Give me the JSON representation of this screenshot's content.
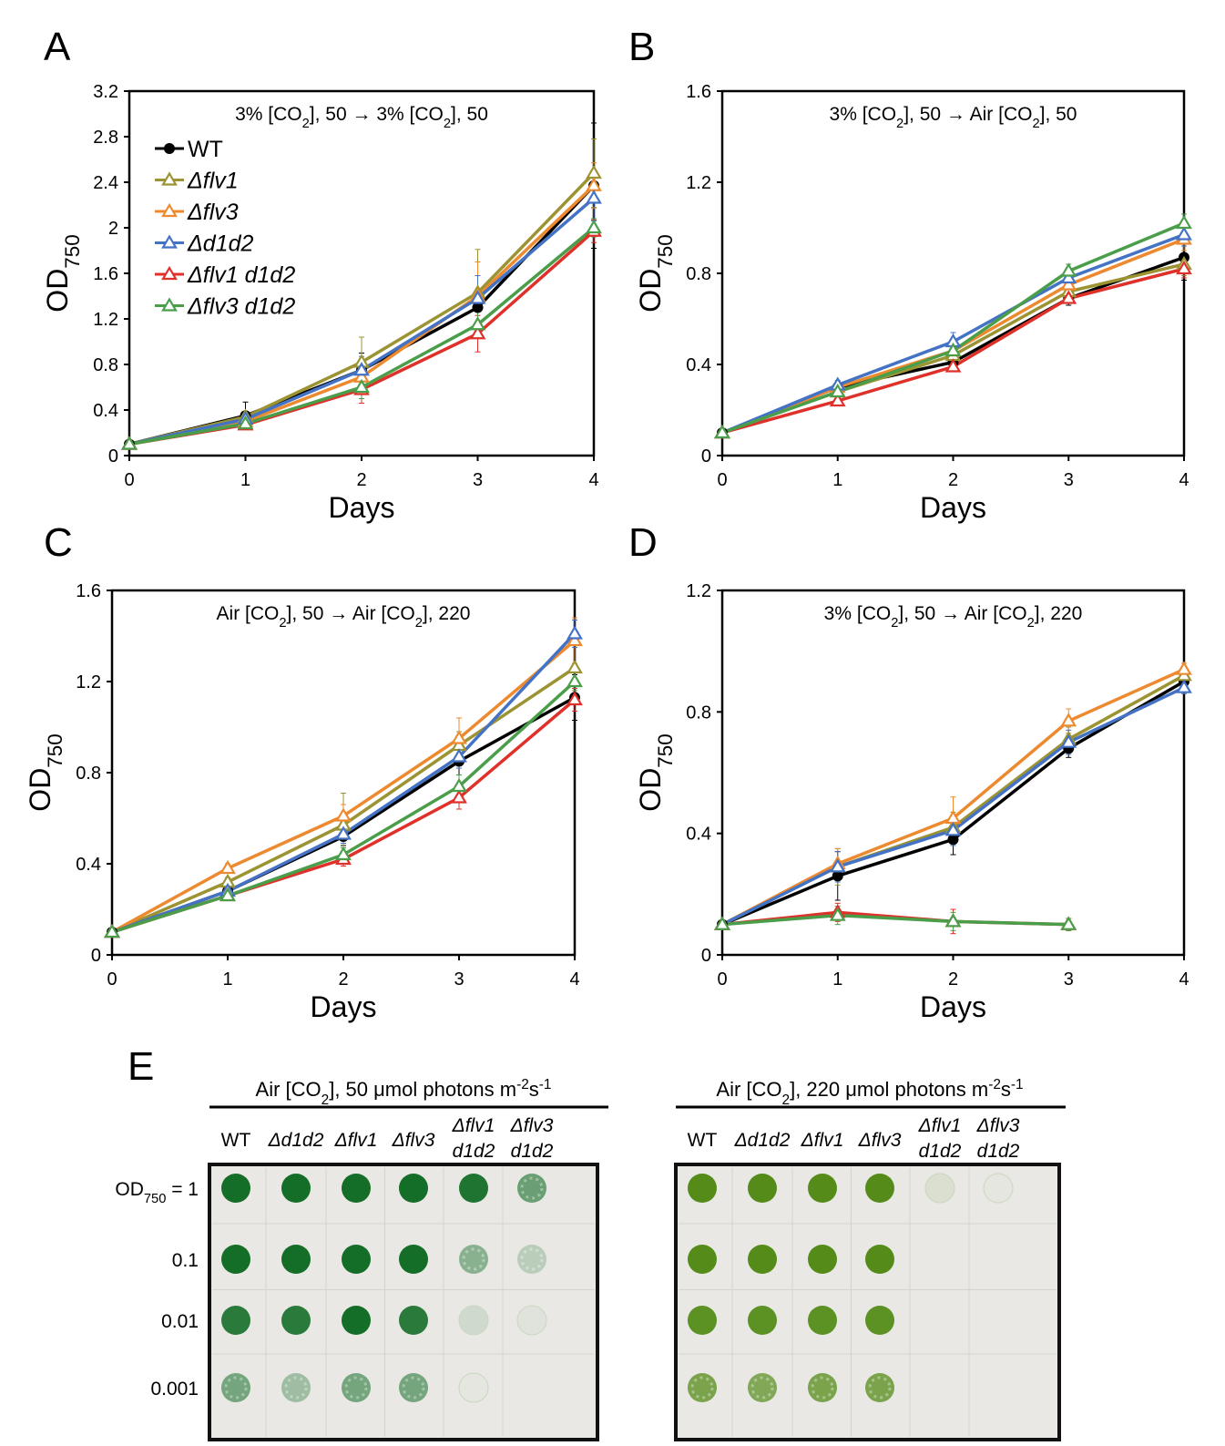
{
  "strains": [
    {
      "name": "WT",
      "color": "#000000",
      "marker": "filled-circle"
    },
    {
      "name": "Δflv1",
      "color": "#9C9333",
      "marker": "open-triangle"
    },
    {
      "name": "Δflv3",
      "color": "#ED8A2F",
      "marker": "open-triangle"
    },
    {
      "name": "Δd1d2",
      "color": "#4472C4",
      "marker": "open-triangle"
    },
    {
      "name": "Δflv1 d1d2",
      "color": "#E0302A",
      "marker": "open-triangle"
    },
    {
      "name": "Δflv3 d1d2",
      "color": "#4A9E4A",
      "marker": "open-triangle"
    }
  ],
  "chart_data": [
    {
      "panel": "A",
      "type": "line",
      "title": "3% [CO2], 50 → 3% [CO2], 50",
      "xlabel": "Days",
      "ylabel": "OD750",
      "xlim": [
        0,
        4
      ],
      "ylim": [
        0,
        3.2
      ],
      "xticks": [
        "0",
        "1",
        "2",
        "3",
        "4"
      ],
      "yticks": [
        "0",
        "0.4",
        "0.8",
        "1.2",
        "1.6",
        "2",
        "2.4",
        "2.8",
        "3.2"
      ],
      "legend": "top-left",
      "series": [
        {
          "name": "WT",
          "x": [
            0,
            1,
            2,
            3,
            4
          ],
          "y": [
            0.1,
            0.35,
            0.75,
            1.3,
            2.37
          ],
          "err": [
            0.02,
            0.12,
            0.15,
            0.15,
            0.55
          ]
        },
        {
          "name": "Δflv1",
          "x": [
            0,
            1,
            2,
            3,
            4
          ],
          "y": [
            0.1,
            0.34,
            0.82,
            1.43,
            2.48
          ],
          "err": [
            0.02,
            0.04,
            0.22,
            0.38,
            0.3
          ]
        },
        {
          "name": "Δflv3",
          "x": [
            0,
            1,
            2,
            3,
            4
          ],
          "y": [
            0.1,
            0.3,
            0.69,
            1.4,
            2.37
          ],
          "err": [
            0.02,
            0.04,
            0.15,
            0.3,
            0.2
          ]
        },
        {
          "name": "Δd1d2",
          "x": [
            0,
            1,
            2,
            3,
            4
          ],
          "y": [
            0.1,
            0.32,
            0.75,
            1.38,
            2.26
          ],
          "err": [
            0.02,
            0.04,
            0.12,
            0.2,
            0.2
          ]
        },
        {
          "name": "Δflv1 d1d2",
          "x": [
            0,
            1,
            2,
            3,
            4
          ],
          "y": [
            0.1,
            0.27,
            0.58,
            1.07,
            1.97
          ],
          "err": [
            0.02,
            0.03,
            0.12,
            0.16,
            0.1
          ]
        },
        {
          "name": "Δflv3 d1d2",
          "x": [
            0,
            1,
            2,
            3,
            4
          ],
          "y": [
            0.1,
            0.28,
            0.6,
            1.15,
            2.0
          ],
          "err": [
            0.02,
            0.03,
            0.1,
            0.12,
            0.08
          ]
        }
      ]
    },
    {
      "panel": "B",
      "type": "line",
      "title": "3% [CO2], 50 → Air [CO2], 50",
      "xlabel": "Days",
      "ylabel": "OD750",
      "xlim": [
        0,
        4
      ],
      "ylim": [
        0,
        1.6
      ],
      "xticks": [
        "0",
        "1",
        "2",
        "3",
        "4"
      ],
      "yticks": [
        "0",
        "0.4",
        "0.8",
        "1.2",
        "1.6"
      ],
      "series": [
        {
          "name": "WT",
          "x": [
            0,
            1,
            2,
            3,
            4
          ],
          "y": [
            0.1,
            0.3,
            0.41,
            0.69,
            0.87
          ],
          "err": [
            0.01,
            0.02,
            0.03,
            0.03,
            0.1
          ]
        },
        {
          "name": "Δflv1",
          "x": [
            0,
            1,
            2,
            3,
            4
          ],
          "y": [
            0.1,
            0.28,
            0.44,
            0.72,
            0.84
          ],
          "err": [
            0.01,
            0.02,
            0.03,
            0.03,
            0.05
          ]
        },
        {
          "name": "Δflv3",
          "x": [
            0,
            1,
            2,
            3,
            4
          ],
          "y": [
            0.1,
            0.3,
            0.46,
            0.75,
            0.95
          ],
          "err": [
            0.01,
            0.02,
            0.03,
            0.03,
            0.05
          ]
        },
        {
          "name": "Δd1d2",
          "x": [
            0,
            1,
            2,
            3,
            4
          ],
          "y": [
            0.1,
            0.31,
            0.5,
            0.78,
            0.97
          ],
          "err": [
            0.01,
            0.02,
            0.04,
            0.03,
            0.05
          ]
        },
        {
          "name": "Δflv1 d1d2",
          "x": [
            0,
            1,
            2,
            3,
            4
          ],
          "y": [
            0.1,
            0.24,
            0.39,
            0.69,
            0.82
          ],
          "err": [
            0.01,
            0.02,
            0.02,
            0.02,
            0.04
          ]
        },
        {
          "name": "Δflv3 d1d2",
          "x": [
            0,
            1,
            2,
            3,
            4
          ],
          "y": [
            0.1,
            0.28,
            0.46,
            0.81,
            1.02
          ],
          "err": [
            0.01,
            0.02,
            0.03,
            0.03,
            0.04
          ]
        }
      ]
    },
    {
      "panel": "C",
      "type": "line",
      "title": "Air [CO2], 50 → Air [CO2], 220",
      "xlabel": "Days",
      "ylabel": "OD750",
      "xlim": [
        0,
        4
      ],
      "ylim": [
        0,
        1.6
      ],
      "xticks": [
        "0",
        "1",
        "2",
        "3",
        "4"
      ],
      "yticks": [
        "0",
        "0.4",
        "0.8",
        "1.2",
        "1.6"
      ],
      "series": [
        {
          "name": "WT",
          "x": [
            0,
            1,
            2,
            3,
            4
          ],
          "y": [
            0.1,
            0.28,
            0.52,
            0.85,
            1.13
          ],
          "err": [
            0.01,
            0.02,
            0.04,
            0.06,
            0.1
          ]
        },
        {
          "name": "Δflv1",
          "x": [
            0,
            1,
            2,
            3,
            4
          ],
          "y": [
            0.1,
            0.32,
            0.57,
            0.92,
            1.26
          ],
          "err": [
            0.01,
            0.02,
            0.14,
            0.06,
            0.1
          ]
        },
        {
          "name": "Δflv3",
          "x": [
            0,
            1,
            2,
            3,
            4
          ],
          "y": [
            0.1,
            0.38,
            0.61,
            0.95,
            1.38
          ],
          "err": [
            0.01,
            0.02,
            0.05,
            0.09,
            0.1
          ]
        },
        {
          "name": "Δd1d2",
          "x": [
            0,
            1,
            2,
            3,
            4
          ],
          "y": [
            0.1,
            0.28,
            0.53,
            0.87,
            1.41
          ],
          "err": [
            0.01,
            0.02,
            0.04,
            0.05,
            0.06
          ]
        },
        {
          "name": "Δflv1 d1d2",
          "x": [
            0,
            1,
            2,
            3,
            4
          ],
          "y": [
            0.1,
            0.26,
            0.42,
            0.69,
            1.12
          ],
          "err": [
            0.01,
            0.02,
            0.03,
            0.05,
            0.05
          ]
        },
        {
          "name": "Δflv3 d1d2",
          "x": [
            0,
            1,
            2,
            3,
            4
          ],
          "y": [
            0.1,
            0.26,
            0.44,
            0.74,
            1.2
          ],
          "err": [
            0.01,
            0.02,
            0.03,
            0.05,
            0.05
          ]
        }
      ]
    },
    {
      "panel": "D",
      "type": "line",
      "title": "3% [CO2], 50 → Air [CO2], 220",
      "xlabel": "Days",
      "ylabel": "OD750",
      "xlim": [
        0,
        4
      ],
      "ylim": [
        0,
        1.2
      ],
      "xticks": [
        "0",
        "1",
        "2",
        "3",
        "4"
      ],
      "yticks": [
        "0",
        "0.4",
        "0.8",
        "1.2"
      ],
      "series": [
        {
          "name": "WT",
          "x": [
            0,
            1,
            2,
            3,
            4
          ],
          "y": [
            0.1,
            0.26,
            0.38,
            0.68,
            0.9
          ],
          "err": [
            0.01,
            0.08,
            0.05,
            0.03,
            0.02
          ]
        },
        {
          "name": "Δflv1",
          "x": [
            0,
            1,
            2,
            3,
            4
          ],
          "y": [
            0.1,
            0.29,
            0.42,
            0.71,
            0.92
          ],
          "err": [
            0.01,
            0.06,
            0.05,
            0.04,
            0.02
          ]
        },
        {
          "name": "Δflv3",
          "x": [
            0,
            1,
            2,
            3,
            4
          ],
          "y": [
            0.1,
            0.3,
            0.45,
            0.77,
            0.94
          ],
          "err": [
            0.01,
            0.05,
            0.07,
            0.04,
            0.02
          ]
        },
        {
          "name": "Δd1d2",
          "x": [
            0,
            1,
            2,
            3,
            4
          ],
          "y": [
            0.1,
            0.29,
            0.41,
            0.7,
            0.88
          ],
          "err": [
            0.01,
            0.05,
            0.05,
            0.04,
            0.02
          ]
        },
        {
          "name": "Δflv1 d1d2",
          "x": [
            0,
            1,
            2,
            3
          ],
          "y": [
            0.1,
            0.14,
            0.11,
            0.1
          ],
          "err": [
            0.01,
            0.03,
            0.04,
            0.02
          ]
        },
        {
          "name": "Δflv3 d1d2",
          "x": [
            0,
            1,
            2,
            3
          ],
          "y": [
            0.1,
            0.13,
            0.11,
            0.1
          ],
          "err": [
            0.01,
            0.03,
            0.03,
            0.02
          ]
        }
      ]
    }
  ],
  "spot_assay": {
    "panel": "E",
    "row_labels": [
      "1",
      "0.1",
      "0.01",
      "0.001"
    ],
    "row_label_prefix": "OD750 =",
    "columns": [
      {
        "line1": "WT",
        "line2": ""
      },
      {
        "line1": "Δd1d2",
        "line2": ""
      },
      {
        "line1": "Δflv1",
        "line2": ""
      },
      {
        "line1": "Δflv3",
        "line2": ""
      },
      {
        "line1": "Δflv1",
        "line2": "d1d2"
      },
      {
        "line1": "Δflv3",
        "line2": "d1d2"
      }
    ],
    "plates": [
      {
        "title": "Air [CO2], 50 μmol photons m-2s-1",
        "growth": [
          [
            1,
            1,
            1,
            1,
            0.95,
            0.6
          ],
          [
            1,
            1,
            1,
            1,
            0.45,
            0.22
          ],
          [
            0.9,
            0.9,
            1,
            0.9,
            0.12,
            0.04
          ],
          [
            0.55,
            0.35,
            0.55,
            0.55,
            0.02,
            0
          ]
        ]
      },
      {
        "title": "Air [CO2], 220 μmol photons m-2s-1",
        "growth": [
          [
            1,
            1,
            1,
            1,
            0.1,
            0.02
          ],
          [
            1,
            1,
            1,
            1,
            0,
            0
          ],
          [
            0.95,
            0.95,
            0.95,
            0.95,
            0,
            0
          ],
          [
            0.75,
            0.7,
            0.75,
            0.75,
            0,
            0
          ]
        ]
      }
    ]
  }
}
